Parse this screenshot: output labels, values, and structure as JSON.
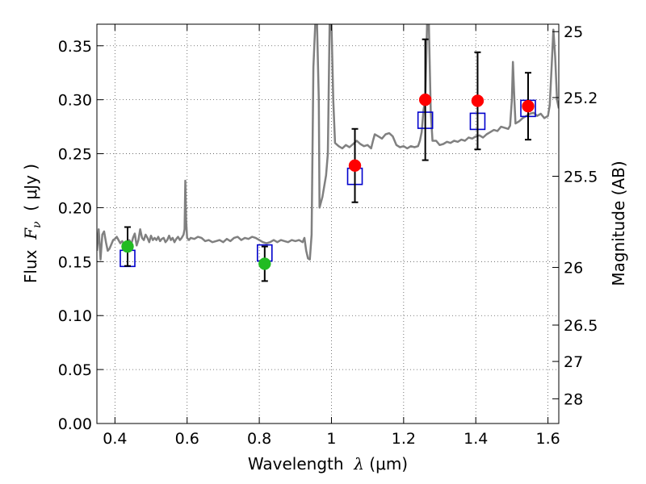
{
  "chart_data": {
    "type": "scatter",
    "xlabel": {
      "prefix": "Wavelength  ",
      "symbol": "λ",
      "unit": " (μm)"
    },
    "ylabel": {
      "prefix": "Flux  ",
      "symbol": "F",
      "subscript": "ν",
      "unit": "  ( μJy )"
    },
    "y2label": "Magnitude (AB)",
    "xlim": [
      0.35,
      1.63
    ],
    "ylim": [
      0.0,
      0.37
    ],
    "grid": true,
    "x_ticks": [
      0.4,
      0.6,
      0.8,
      1.0,
      1.2,
      1.4,
      1.6
    ],
    "x_tick_labels": [
      "0.4",
      "0.6",
      "0.8",
      "1",
      "1.2",
      "1.4",
      "1.6"
    ],
    "y_ticks": [
      0.0,
      0.05,
      0.1,
      0.15,
      0.2,
      0.25,
      0.3,
      0.35
    ],
    "y_tick_labels": [
      "0.00",
      "0.05",
      "0.10",
      "0.15",
      "0.20",
      "0.25",
      "0.30",
      "0.35"
    ],
    "y2_ticks": [
      {
        "label": "25",
        "flux": 0.3631
      },
      {
        "label": "25.2",
        "flux": 0.302
      },
      {
        "label": "25.5",
        "flux": 0.2291
      },
      {
        "label": "26",
        "flux": 0.1446
      },
      {
        "label": "26.5",
        "flux": 0.0912
      },
      {
        "label": "27",
        "flux": 0.0575
      },
      {
        "label": "28",
        "flux": 0.0229
      }
    ],
    "colors": {
      "spectrum": "#808080",
      "model": "#0000cc",
      "optical": "#22bb22",
      "infrared": "#ff0000",
      "errorbar": "#000000",
      "grid": "#555555"
    },
    "series": [
      {
        "marker": "square",
        "color": "#0000cc",
        "points": [
          {
            "x": 0.435,
            "y": 0.153
          },
          {
            "x": 0.815,
            "y": 0.158
          },
          {
            "x": 1.065,
            "y": 0.229
          },
          {
            "x": 1.26,
            "y": 0.281
          },
          {
            "x": 1.405,
            "y": 0.28
          },
          {
            "x": 1.545,
            "y": 0.292
          }
        ]
      },
      {
        "marker": "circle",
        "color": "#22bb22",
        "points": [
          {
            "x": 0.435,
            "y": 0.164,
            "err": 0.018
          },
          {
            "x": 0.815,
            "y": 0.148,
            "err": 0.016
          }
        ]
      },
      {
        "marker": "circle",
        "color": "#ff0000",
        "points": [
          {
            "x": 1.065,
            "y": 0.239,
            "err": 0.034
          },
          {
            "x": 1.26,
            "y": 0.3,
            "err": 0.056
          },
          {
            "x": 1.405,
            "y": 0.299,
            "err": 0.045
          },
          {
            "x": 1.545,
            "y": 0.294,
            "err": 0.031
          }
        ]
      }
    ],
    "spectrum": [
      [
        0.35,
        0.16
      ],
      [
        0.355,
        0.18
      ],
      [
        0.36,
        0.152
      ],
      [
        0.365,
        0.175
      ],
      [
        0.37,
        0.178
      ],
      [
        0.375,
        0.168
      ],
      [
        0.38,
        0.16
      ],
      [
        0.385,
        0.162
      ],
      [
        0.39,
        0.166
      ],
      [
        0.395,
        0.17
      ],
      [
        0.4,
        0.171
      ],
      [
        0.405,
        0.173
      ],
      [
        0.41,
        0.17
      ],
      [
        0.415,
        0.167
      ],
      [
        0.42,
        0.169
      ],
      [
        0.425,
        0.166
      ],
      [
        0.43,
        0.168
      ],
      [
        0.435,
        0.163
      ],
      [
        0.44,
        0.17
      ],
      [
        0.445,
        0.166
      ],
      [
        0.45,
        0.172
      ],
      [
        0.455,
        0.176
      ],
      [
        0.46,
        0.165
      ],
      [
        0.465,
        0.17
      ],
      [
        0.47,
        0.18
      ],
      [
        0.475,
        0.172
      ],
      [
        0.48,
        0.17
      ],
      [
        0.485,
        0.175
      ],
      [
        0.49,
        0.172
      ],
      [
        0.495,
        0.168
      ],
      [
        0.5,
        0.174
      ],
      [
        0.505,
        0.17
      ],
      [
        0.51,
        0.172
      ],
      [
        0.515,
        0.17
      ],
      [
        0.52,
        0.173
      ],
      [
        0.525,
        0.169
      ],
      [
        0.53,
        0.171
      ],
      [
        0.535,
        0.172
      ],
      [
        0.54,
        0.168
      ],
      [
        0.545,
        0.17
      ],
      [
        0.55,
        0.174
      ],
      [
        0.555,
        0.17
      ],
      [
        0.56,
        0.172
      ],
      [
        0.565,
        0.168
      ],
      [
        0.57,
        0.171
      ],
      [
        0.575,
        0.173
      ],
      [
        0.58,
        0.17
      ],
      [
        0.585,
        0.172
      ],
      [
        0.59,
        0.175
      ],
      [
        0.593,
        0.18
      ],
      [
        0.595,
        0.225
      ],
      [
        0.597,
        0.19
      ],
      [
        0.6,
        0.172
      ],
      [
        0.605,
        0.17
      ],
      [
        0.61,
        0.172
      ],
      [
        0.62,
        0.171
      ],
      [
        0.63,
        0.173
      ],
      [
        0.64,
        0.172
      ],
      [
        0.65,
        0.169
      ],
      [
        0.66,
        0.17
      ],
      [
        0.67,
        0.168
      ],
      [
        0.68,
        0.169
      ],
      [
        0.69,
        0.17
      ],
      [
        0.7,
        0.168
      ],
      [
        0.71,
        0.171
      ],
      [
        0.72,
        0.169
      ],
      [
        0.73,
        0.172
      ],
      [
        0.74,
        0.173
      ],
      [
        0.75,
        0.17
      ],
      [
        0.76,
        0.172
      ],
      [
        0.77,
        0.171
      ],
      [
        0.78,
        0.173
      ],
      [
        0.79,
        0.172
      ],
      [
        0.8,
        0.17
      ],
      [
        0.81,
        0.168
      ],
      [
        0.82,
        0.167
      ],
      [
        0.83,
        0.168
      ],
      [
        0.84,
        0.17
      ],
      [
        0.85,
        0.168
      ],
      [
        0.86,
        0.17
      ],
      [
        0.87,
        0.169
      ],
      [
        0.88,
        0.168
      ],
      [
        0.89,
        0.17
      ],
      [
        0.9,
        0.169
      ],
      [
        0.91,
        0.17
      ],
      [
        0.92,
        0.168
      ],
      [
        0.925,
        0.172
      ],
      [
        0.93,
        0.16
      ],
      [
        0.935,
        0.153
      ],
      [
        0.94,
        0.152
      ],
      [
        0.945,
        0.175
      ],
      [
        0.95,
        0.33
      ],
      [
        0.955,
        0.37
      ],
      [
        0.96,
        0.37
      ],
      [
        0.965,
        0.3
      ],
      [
        0.967,
        0.2
      ],
      [
        0.975,
        0.21
      ],
      [
        0.985,
        0.23
      ],
      [
        0.99,
        0.25
      ],
      [
        0.995,
        0.37
      ],
      [
        1.0,
        0.37
      ],
      [
        1.005,
        0.3
      ],
      [
        1.01,
        0.26
      ],
      [
        1.02,
        0.257
      ],
      [
        1.03,
        0.255
      ],
      [
        1.04,
        0.258
      ],
      [
        1.05,
        0.256
      ],
      [
        1.06,
        0.259
      ],
      [
        1.07,
        0.262
      ],
      [
        1.08,
        0.259
      ],
      [
        1.09,
        0.257
      ],
      [
        1.1,
        0.258
      ],
      [
        1.11,
        0.255
      ],
      [
        1.115,
        0.262
      ],
      [
        1.12,
        0.268
      ],
      [
        1.13,
        0.266
      ],
      [
        1.14,
        0.264
      ],
      [
        1.15,
        0.268
      ],
      [
        1.16,
        0.269
      ],
      [
        1.17,
        0.266
      ],
      [
        1.18,
        0.258
      ],
      [
        1.19,
        0.256
      ],
      [
        1.2,
        0.257
      ],
      [
        1.21,
        0.255
      ],
      [
        1.22,
        0.257
      ],
      [
        1.23,
        0.256
      ],
      [
        1.24,
        0.257
      ],
      [
        1.245,
        0.262
      ],
      [
        1.25,
        0.27
      ],
      [
        1.255,
        0.29
      ],
      [
        1.26,
        0.3
      ],
      [
        1.265,
        0.37
      ],
      [
        1.27,
        0.37
      ],
      [
        1.275,
        0.29
      ],
      [
        1.28,
        0.262
      ],
      [
        1.29,
        0.262
      ],
      [
        1.3,
        0.258
      ],
      [
        1.31,
        0.259
      ],
      [
        1.32,
        0.261
      ],
      [
        1.33,
        0.26
      ],
      [
        1.34,
        0.262
      ],
      [
        1.35,
        0.261
      ],
      [
        1.36,
        0.263
      ],
      [
        1.37,
        0.262
      ],
      [
        1.38,
        0.265
      ],
      [
        1.39,
        0.264
      ],
      [
        1.4,
        0.266
      ],
      [
        1.41,
        0.267
      ],
      [
        1.42,
        0.265
      ],
      [
        1.43,
        0.268
      ],
      [
        1.44,
        0.27
      ],
      [
        1.45,
        0.272
      ],
      [
        1.46,
        0.271
      ],
      [
        1.47,
        0.275
      ],
      [
        1.48,
        0.274
      ],
      [
        1.49,
        0.273
      ],
      [
        1.495,
        0.276
      ],
      [
        1.5,
        0.3
      ],
      [
        1.503,
        0.335
      ],
      [
        1.507,
        0.3
      ],
      [
        1.51,
        0.278
      ],
      [
        1.52,
        0.28
      ],
      [
        1.53,
        0.283
      ],
      [
        1.54,
        0.285
      ],
      [
        1.55,
        0.287
      ],
      [
        1.56,
        0.288
      ],
      [
        1.57,
        0.285
      ],
      [
        1.58,
        0.287
      ],
      [
        1.59,
        0.283
      ],
      [
        1.6,
        0.285
      ],
      [
        1.605,
        0.295
      ],
      [
        1.61,
        0.33
      ],
      [
        1.615,
        0.365
      ],
      [
        1.62,
        0.34
      ],
      [
        1.625,
        0.3
      ],
      [
        1.63,
        0.292
      ]
    ]
  }
}
